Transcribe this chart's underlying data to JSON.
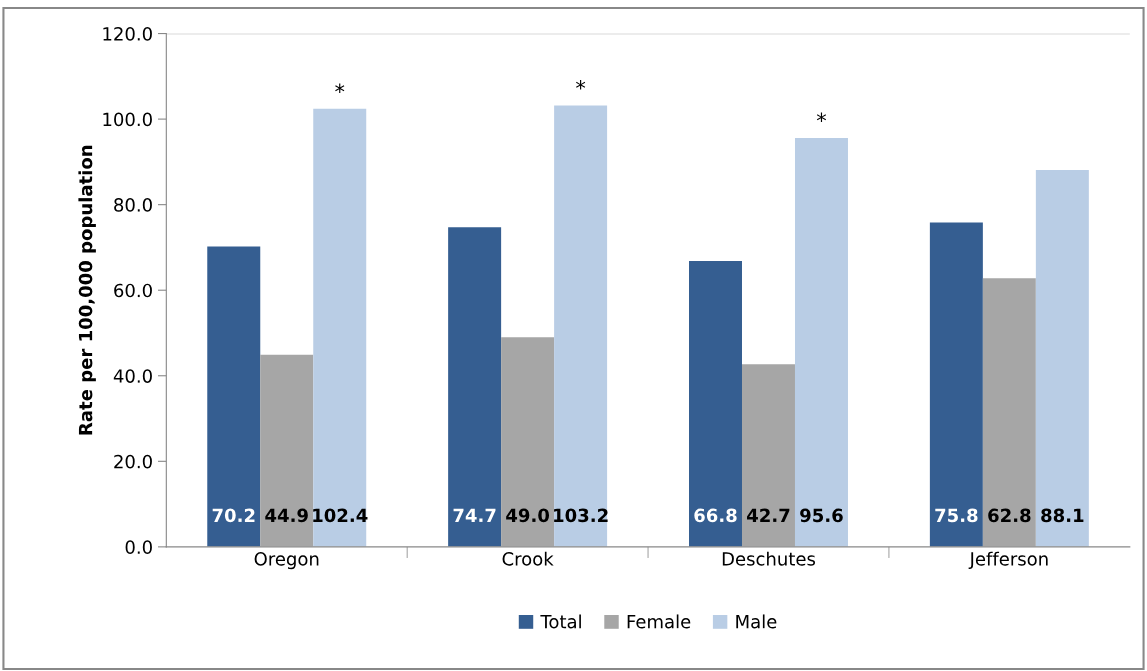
{
  "chart_data": {
    "type": "bar",
    "ylabel": "Rate per 100,000 population",
    "categories": [
      "Oregon",
      "Crook",
      "Deschutes",
      "Jefferson"
    ],
    "series": [
      {
        "name": "Total",
        "color": "#355e91",
        "values": [
          70.2,
          74.7,
          66.8,
          75.8
        ]
      },
      {
        "name": "Female",
        "color": "#a6a6a6",
        "values": [
          44.9,
          49.0,
          42.7,
          62.8
        ]
      },
      {
        "name": "Male",
        "color": "#b9cde5",
        "values": [
          102.4,
          103.2,
          95.6,
          88.1
        ]
      }
    ],
    "value_labels": [
      [
        "70.2",
        "74.7",
        "66.8",
        "75.8"
      ],
      [
        "44.9",
        "49.0",
        "42.7",
        "62.8"
      ],
      [
        "102.4",
        "103.2",
        "95.6",
        "88.1"
      ]
    ],
    "ylim": [
      0,
      120
    ],
    "yticks": [
      {
        "value": 0,
        "label": "0.0"
      },
      {
        "value": 20,
        "label": "20.0"
      },
      {
        "value": 40,
        "label": "40.0"
      },
      {
        "value": 60,
        "label": "60.0"
      },
      {
        "value": 80,
        "label": "80.0"
      },
      {
        "value": 100,
        "label": "100.0"
      },
      {
        "value": 120,
        "label": "120.0"
      }
    ],
    "annotations": [
      "*",
      "*",
      "*"
    ],
    "grid": false,
    "legend": "bottom"
  }
}
